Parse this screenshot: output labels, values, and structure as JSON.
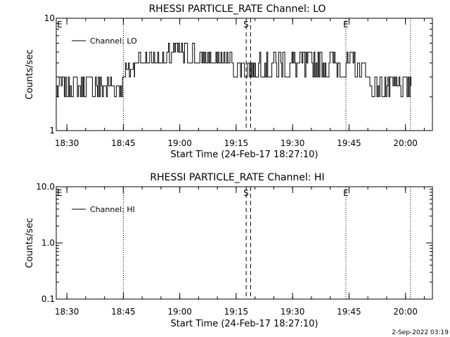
{
  "footer": {
    "stamp": "2-Sep-2022 03:19"
  },
  "chart_data": [
    {
      "type": "line",
      "title": "RHESSI PARTICLE_RATE Channel: LO",
      "xlabel": "Start Time (24-Feb-17 18:27:10)",
      "ylabel": "Counts/sec",
      "yscale": "log",
      "ylim": [
        1,
        10
      ],
      "y_ticks": [
        1,
        10
      ],
      "y_tick_labels": [
        "1",
        "10"
      ],
      "xlim": [
        "18:27:10",
        "20:07:10"
      ],
      "x_ticks": [
        "18:30",
        "18:45",
        "19:00",
        "19:15",
        "19:30",
        "19:45",
        "20:00"
      ],
      "legend": {
        "label": "Channel: LO",
        "placement": "top-left"
      },
      "markers": [
        {
          "label": "E",
          "time": "18:27:30",
          "style": "none"
        },
        {
          "label": "",
          "time": "18:45:00",
          "style": "dotted"
        },
        {
          "label": "S",
          "time": "19:17:40",
          "style": "dashed"
        },
        {
          "label": "",
          "time": "19:18:50",
          "style": "dashed"
        },
        {
          "label": "E",
          "time": "19:44:10",
          "style": "dotted"
        },
        {
          "label": "",
          "time": "20:01:20",
          "style": "dotted"
        }
      ],
      "series": [
        {
          "name": "Channel: LO",
          "segments": [
            {
              "from": "18:27:10",
              "to": "18:45:00",
              "low": 2,
              "high": 3,
              "level": 2.5
            },
            {
              "from": "18:45:00",
              "to": "18:48:00",
              "low": 3,
              "high": 4,
              "level": 3.5
            },
            {
              "from": "18:48:00",
              "to": "18:57:00",
              "low": 4,
              "high": 5,
              "level": 4
            },
            {
              "from": "18:57:00",
              "to": "19:04:00",
              "low": 4,
              "high": 6,
              "level": 5
            },
            {
              "from": "19:04:00",
              "to": "19:14:00",
              "low": 4,
              "high": 5,
              "level": 4
            },
            {
              "from": "19:14:00",
              "to": "19:21:00",
              "low": 3,
              "high": 4,
              "level": 4
            },
            {
              "from": "19:21:00",
              "to": "19:47:00",
              "low": 3,
              "high": 5,
              "level": 4
            },
            {
              "from": "19:47:00",
              "to": "19:50:00",
              "low": 3,
              "high": 4,
              "level": 3
            },
            {
              "from": "19:50:00",
              "to": "20:01:30",
              "low": 2,
              "high": 3,
              "level": 2.5
            }
          ]
        }
      ]
    },
    {
      "type": "line",
      "title": "RHESSI PARTICLE_RATE Channel: HI",
      "xlabel": "Start Time (24-Feb-17 18:27:10)",
      "ylabel": "Counts/sec",
      "yscale": "log",
      "ylim": [
        0.1,
        10
      ],
      "y_ticks": [
        0.1,
        1,
        10
      ],
      "y_tick_labels": [
        "0.1",
        "1.0",
        "10.0"
      ],
      "xlim": [
        "18:27:10",
        "20:07:10"
      ],
      "x_ticks": [
        "18:30",
        "18:45",
        "19:00",
        "19:15",
        "19:30",
        "19:45",
        "20:00"
      ],
      "legend": {
        "label": "Channel: HI",
        "placement": "top-left"
      },
      "markers": [
        {
          "label": "E",
          "time": "18:27:30",
          "style": "none"
        },
        {
          "label": "",
          "time": "18:45:00",
          "style": "dotted"
        },
        {
          "label": "S",
          "time": "19:17:40",
          "style": "dashed"
        },
        {
          "label": "",
          "time": "19:18:50",
          "style": "dashed"
        },
        {
          "label": "E",
          "time": "19:44:10",
          "style": "dotted"
        },
        {
          "label": "",
          "time": "20:01:20",
          "style": "dotted"
        }
      ],
      "series": [
        {
          "name": "Channel: HI",
          "segments": []
        }
      ]
    }
  ]
}
